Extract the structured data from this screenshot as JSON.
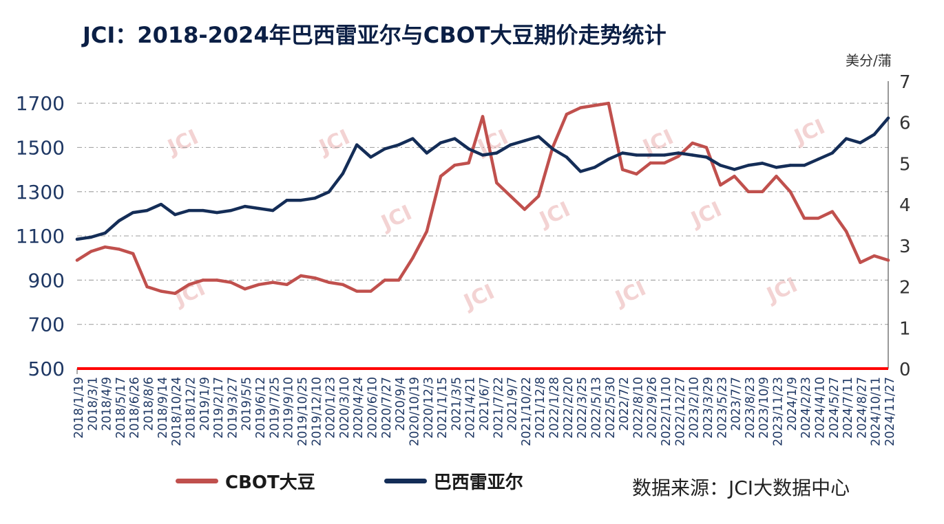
{
  "title": "JCI：2018-2024年巴西雷亚尔与CBOT大豆期价走势统计",
  "source": "数据来源：JCI大数据中心",
  "right_unit": "美分/蒲",
  "watermark": "JCI",
  "colors": {
    "cbot": "#c0504d",
    "brl": "#142d57",
    "zero_line": "#ff0000",
    "grid": "#a6a6a6",
    "axis_text": "#1f3864"
  },
  "chart_data": {
    "type": "line",
    "title": "JCI：2018-2024年巴西雷亚尔与CBOT大豆期价走势统计",
    "categories": [
      "2018/1/19",
      "2018/3/1",
      "2018/4/9",
      "2018/5/17",
      "2018/6/26",
      "2018/8/6",
      "2018/9/14",
      "2018/10/24",
      "2018/12/2",
      "2019/1/9",
      "2019/2/17",
      "2019/3/27",
      "2019/5/5",
      "2019/6/12",
      "2019/7/25",
      "2019/9/10",
      "2019/10/25",
      "2019/12/10",
      "2020/1/23",
      "2020/3/10",
      "2020/4/24",
      "2020/6/10",
      "2020/7/27",
      "2020/9/4",
      "2020/10/19",
      "2020/12/3",
      "2021/1/15",
      "2021/3/5",
      "2021/4/21",
      "2021/6/7",
      "2021/7/22",
      "2021/9/7",
      "2021/10/22",
      "2021/12/8",
      "2022/1/28",
      "2022/2/20",
      "2022/3/25",
      "2022/5/13",
      "2022/5/30",
      "2022/7/2",
      "2022/8/10",
      "2022/9/26",
      "2022/11/10",
      "2022/12/27",
      "2023/2/10",
      "2023/3/29",
      "2023/5/23",
      "2023/7/7",
      "2023/8/23",
      "2023/10/9",
      "2023/11/23",
      "2024/1/9",
      "2024/2/23",
      "2024/4/10",
      "2024/5/27",
      "2024/7/11",
      "2024/8/27",
      "2024/10/11",
      "2024/11/27"
    ],
    "left_axis": {
      "ylim": [
        500,
        1800
      ],
      "ticks": [
        500,
        700,
        900,
        1100,
        1300,
        1500,
        1700
      ]
    },
    "right_axis": {
      "ylim": [
        0,
        7
      ],
      "ticks": [
        0,
        1,
        2,
        3,
        4,
        5,
        6,
        7
      ],
      "label": "美分/蒲"
    },
    "grid": true,
    "legend": "bottom-left",
    "series": [
      {
        "name": "CBOT大豆",
        "axis": "left",
        "values": [
          990,
          1030,
          1050,
          1040,
          1020,
          870,
          850,
          840,
          880,
          900,
          900,
          890,
          860,
          880,
          890,
          880,
          920,
          910,
          890,
          880,
          850,
          850,
          900,
          900,
          1000,
          1120,
          1370,
          1420,
          1430,
          1640,
          1340,
          1280,
          1220,
          1280,
          1500,
          1650,
          1680,
          1690,
          1700,
          1400,
          1380,
          1430,
          1430,
          1460,
          1520,
          1500,
          1330,
          1370,
          1300,
          1300,
          1370,
          1300,
          1180,
          1180,
          1210,
          1120,
          980,
          1010,
          990
        ]
      },
      {
        "name": "巴西雷亚尔",
        "axis": "right",
        "values": [
          3.15,
          3.2,
          3.3,
          3.6,
          3.8,
          3.85,
          4.0,
          3.75,
          3.85,
          3.85,
          3.8,
          3.85,
          3.95,
          3.9,
          3.85,
          4.1,
          4.1,
          4.15,
          4.3,
          4.75,
          5.45,
          5.15,
          5.35,
          5.45,
          5.6,
          5.25,
          5.5,
          5.6,
          5.35,
          5.2,
          5.25,
          5.45,
          5.55,
          5.65,
          5.35,
          5.15,
          4.8,
          4.9,
          5.1,
          5.25,
          5.2,
          5.2,
          5.2,
          5.25,
          5.2,
          5.15,
          4.95,
          4.85,
          4.95,
          5.0,
          4.9,
          4.95,
          4.95,
          5.1,
          5.25,
          5.6,
          5.5,
          5.7,
          6.1
        ]
      }
    ]
  }
}
